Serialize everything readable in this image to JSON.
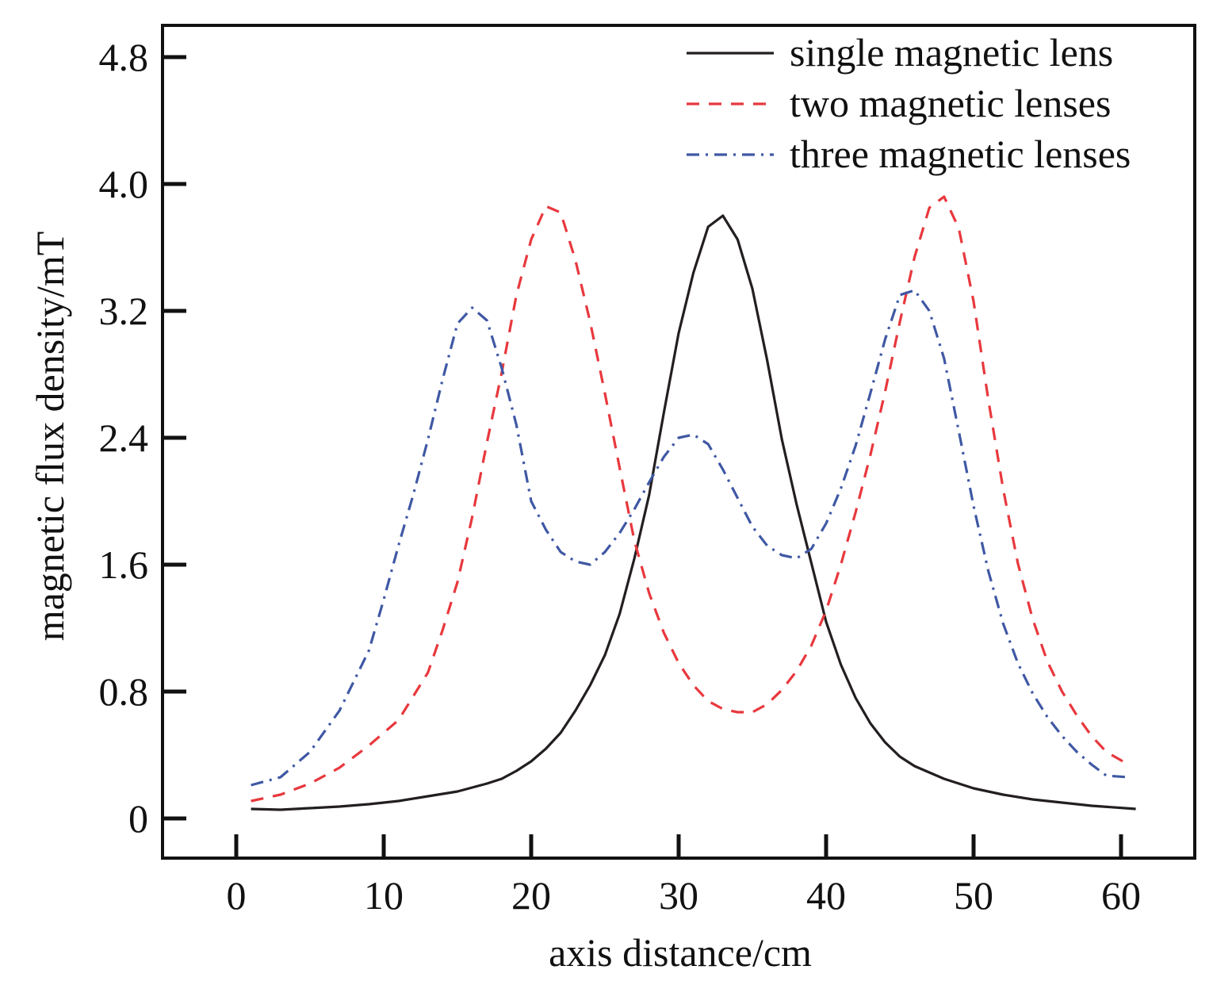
{
  "chart_data": {
    "type": "line",
    "title": "",
    "xlabel": "axis distance/cm",
    "ylabel": "magnetic flux density/mT",
    "xlim": [
      -5,
      65
    ],
    "ylim": [
      -0.25,
      5.0
    ],
    "xticks": [
      0,
      10,
      20,
      30,
      40,
      50,
      60
    ],
    "xtick_labels": [
      "0",
      "10",
      "20",
      "30",
      "40",
      "50",
      "60"
    ],
    "yticks": [
      0,
      0.8,
      1.6,
      2.4,
      3.2,
      4.0,
      4.8
    ],
    "ytick_labels": [
      "0",
      "0.8",
      "1.6",
      "2.4",
      "3.2",
      "4.0",
      "4.8"
    ],
    "grid": false,
    "legend_position": "top-right",
    "series": [
      {
        "name": "single magnetic lens",
        "color": "#231f20",
        "style": "solid",
        "x": [
          1,
          3,
          5,
          7,
          9,
          11,
          13,
          15,
          17,
          18,
          19,
          20,
          21,
          22,
          23,
          24,
          25,
          26,
          27,
          28,
          29,
          30,
          31,
          32,
          33,
          34,
          35,
          36,
          37,
          38,
          39,
          40,
          41,
          42,
          43,
          44,
          45,
          46,
          48,
          50,
          52,
          54,
          56,
          58,
          61
        ],
        "y": [
          0.06,
          0.055,
          0.065,
          0.075,
          0.09,
          0.11,
          0.14,
          0.17,
          0.22,
          0.25,
          0.3,
          0.36,
          0.44,
          0.54,
          0.68,
          0.84,
          1.03,
          1.29,
          1.64,
          2.04,
          2.56,
          3.06,
          3.44,
          3.73,
          3.8,
          3.65,
          3.34,
          2.89,
          2.39,
          1.98,
          1.61,
          1.24,
          0.97,
          0.76,
          0.6,
          0.48,
          0.39,
          0.33,
          0.25,
          0.19,
          0.15,
          0.12,
          0.1,
          0.08,
          0.06
        ]
      },
      {
        "name": "two magnetic lenses",
        "color": "#e8383d",
        "style": "dashed",
        "x": [
          1,
          3,
          5,
          7,
          9,
          11,
          13,
          14,
          15,
          16,
          17,
          18,
          19,
          20,
          21,
          22,
          23,
          24,
          25,
          26,
          27,
          28,
          29,
          30,
          31,
          32,
          33,
          34,
          35,
          36,
          37,
          38,
          39,
          40,
          41,
          42,
          43,
          44,
          45,
          46,
          47,
          48,
          49,
          50,
          51,
          52,
          53,
          54,
          55,
          56,
          57,
          58,
          59,
          60.5
        ],
        "y": [
          0.11,
          0.15,
          0.22,
          0.32,
          0.46,
          0.62,
          0.92,
          1.19,
          1.49,
          1.9,
          2.37,
          2.81,
          3.3,
          3.65,
          3.86,
          3.82,
          3.52,
          3.13,
          2.68,
          2.21,
          1.75,
          1.42,
          1.17,
          0.98,
          0.84,
          0.74,
          0.69,
          0.67,
          0.67,
          0.72,
          0.81,
          0.93,
          1.09,
          1.31,
          1.6,
          1.93,
          2.29,
          2.69,
          3.13,
          3.54,
          3.85,
          3.92,
          3.72,
          3.26,
          2.64,
          2.08,
          1.61,
          1.26,
          0.99,
          0.8,
          0.65,
          0.52,
          0.42,
          0.34
        ]
      },
      {
        "name": "three magnetic lenses",
        "color": "#3f58a4",
        "style": "dash-dot",
        "x": [
          1,
          3,
          5,
          7,
          9,
          10,
          11,
          12,
          13,
          14,
          15,
          16,
          17,
          18,
          19,
          20,
          21,
          22,
          23,
          24,
          25,
          26,
          27,
          28,
          29,
          30,
          31,
          32,
          33,
          34,
          35,
          36,
          37,
          38,
          39,
          40,
          41,
          42,
          43,
          44,
          45,
          46,
          47,
          48,
          49,
          50,
          51,
          52,
          53,
          54,
          55,
          56,
          57,
          58,
          59,
          60.5
        ],
        "y": [
          0.21,
          0.26,
          0.42,
          0.68,
          1.06,
          1.38,
          1.72,
          2.04,
          2.39,
          2.77,
          3.12,
          3.22,
          3.14,
          2.84,
          2.48,
          2.0,
          1.82,
          1.68,
          1.62,
          1.6,
          1.68,
          1.8,
          1.95,
          2.12,
          2.28,
          2.4,
          2.42,
          2.36,
          2.2,
          2.02,
          1.84,
          1.72,
          1.66,
          1.64,
          1.7,
          1.86,
          2.08,
          2.35,
          2.68,
          3.02,
          3.3,
          3.33,
          3.2,
          2.9,
          2.44,
          1.97,
          1.56,
          1.23,
          0.98,
          0.79,
          0.64,
          0.52,
          0.42,
          0.34,
          0.27,
          0.26
        ]
      }
    ]
  }
}
